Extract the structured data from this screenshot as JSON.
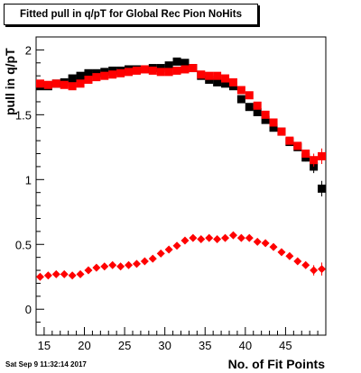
{
  "title": "Fitted pull in q/pT for Global Rec Pion NoHits",
  "footer_timestamp": "Sat Sep  9 11:32:14 2017",
  "chart_data": {
    "type": "scatter",
    "title": "Fitted pull in q/pT for Global Rec Pion NoHits",
    "xlabel": "No. of Fit Points",
    "ylabel": "pull in q/pT",
    "xlim": [
      14,
      50
    ],
    "ylim": [
      -0.2,
      2.1
    ],
    "x_ticks": [
      15,
      20,
      25,
      30,
      35,
      40,
      45
    ],
    "y_ticks": [
      0,
      0.5,
      1,
      1.5,
      2
    ],
    "y_tick_labels": [
      "0",
      "0.5",
      "1",
      "1.5",
      "2"
    ],
    "grid": false,
    "series": [
      {
        "color": "#000000",
        "marker": "square",
        "x": [
          14.5,
          15.5,
          16.5,
          17.5,
          18.5,
          19.5,
          20.5,
          21.5,
          22.5,
          23.5,
          24.5,
          25.5,
          26.5,
          27.5,
          28.5,
          29.5,
          30.5,
          31.5,
          32.5,
          33.5,
          34.5,
          35.5,
          36.5,
          37.5,
          38.5,
          39.5,
          40.5,
          41.5,
          42.5,
          43.5,
          44.5,
          45.5,
          46.5,
          47.5,
          48.5,
          49.5
        ],
        "y": [
          1.72,
          1.72,
          1.74,
          1.75,
          1.78,
          1.8,
          1.82,
          1.82,
          1.83,
          1.84,
          1.84,
          1.85,
          1.85,
          1.85,
          1.86,
          1.86,
          1.88,
          1.91,
          1.9,
          1.86,
          1.8,
          1.77,
          1.75,
          1.74,
          1.72,
          1.62,
          1.56,
          1.52,
          1.46,
          1.4,
          1.37,
          1.29,
          1.25,
          1.17,
          1.1,
          0.93
        ],
        "yerr": [
          0.01,
          0.01,
          0.01,
          0.01,
          0.01,
          0.01,
          0.01,
          0.01,
          0.01,
          0.01,
          0.01,
          0.01,
          0.01,
          0.01,
          0.01,
          0.01,
          0.01,
          0.01,
          0.01,
          0.01,
          0.01,
          0.01,
          0.01,
          0.01,
          0.01,
          0.01,
          0.02,
          0.02,
          0.02,
          0.02,
          0.02,
          0.02,
          0.02,
          0.03,
          0.05,
          0.06
        ]
      },
      {
        "color": "#ff0000",
        "marker": "square",
        "x": [
          14.5,
          15.5,
          16.5,
          17.5,
          18.5,
          19.5,
          20.5,
          21.5,
          22.5,
          23.5,
          24.5,
          25.5,
          26.5,
          27.5,
          28.5,
          29.5,
          30.5,
          31.5,
          32.5,
          33.5,
          34.5,
          35.5,
          36.5,
          37.5,
          38.5,
          39.5,
          40.5,
          41.5,
          42.5,
          43.5,
          44.5,
          45.5,
          46.5,
          47.5,
          48.5,
          49.5
        ],
        "y": [
          1.74,
          1.73,
          1.74,
          1.73,
          1.72,
          1.74,
          1.77,
          1.79,
          1.8,
          1.81,
          1.82,
          1.83,
          1.84,
          1.85,
          1.84,
          1.83,
          1.83,
          1.84,
          1.85,
          1.86,
          1.81,
          1.8,
          1.8,
          1.78,
          1.75,
          1.69,
          1.65,
          1.57,
          1.5,
          1.44,
          1.37,
          1.3,
          1.26,
          1.2,
          1.15,
          1.18
        ],
        "yerr": [
          0.01,
          0.01,
          0.01,
          0.01,
          0.01,
          0.01,
          0.01,
          0.01,
          0.01,
          0.01,
          0.01,
          0.01,
          0.01,
          0.01,
          0.01,
          0.01,
          0.01,
          0.01,
          0.01,
          0.01,
          0.01,
          0.01,
          0.01,
          0.01,
          0.01,
          0.01,
          0.02,
          0.02,
          0.02,
          0.02,
          0.02,
          0.02,
          0.02,
          0.03,
          0.05,
          0.06
        ]
      },
      {
        "color": "#ff0000",
        "marker": "diamond",
        "x": [
          14.5,
          15.5,
          16.5,
          17.5,
          18.5,
          19.5,
          20.5,
          21.5,
          22.5,
          23.5,
          24.5,
          25.5,
          26.5,
          27.5,
          28.5,
          29.5,
          30.5,
          31.5,
          32.5,
          33.5,
          34.5,
          35.5,
          36.5,
          37.5,
          38.5,
          39.5,
          40.5,
          41.5,
          42.5,
          43.5,
          44.5,
          45.5,
          46.5,
          47.5,
          48.5,
          49.5
        ],
        "y": [
          0.25,
          0.26,
          0.27,
          0.27,
          0.26,
          0.27,
          0.3,
          0.32,
          0.33,
          0.34,
          0.33,
          0.34,
          0.35,
          0.37,
          0.39,
          0.43,
          0.46,
          0.49,
          0.53,
          0.55,
          0.54,
          0.55,
          0.54,
          0.55,
          0.57,
          0.55,
          0.55,
          0.52,
          0.51,
          0.48,
          0.44,
          0.41,
          0.37,
          0.34,
          0.3,
          0.31
        ],
        "yerr": [
          0.01,
          0.01,
          0.01,
          0.01,
          0.01,
          0.01,
          0.01,
          0.01,
          0.01,
          0.01,
          0.01,
          0.01,
          0.01,
          0.01,
          0.01,
          0.01,
          0.01,
          0.01,
          0.01,
          0.01,
          0.01,
          0.01,
          0.01,
          0.01,
          0.01,
          0.01,
          0.01,
          0.01,
          0.01,
          0.01,
          0.01,
          0.01,
          0.02,
          0.02,
          0.04,
          0.05
        ]
      }
    ]
  }
}
